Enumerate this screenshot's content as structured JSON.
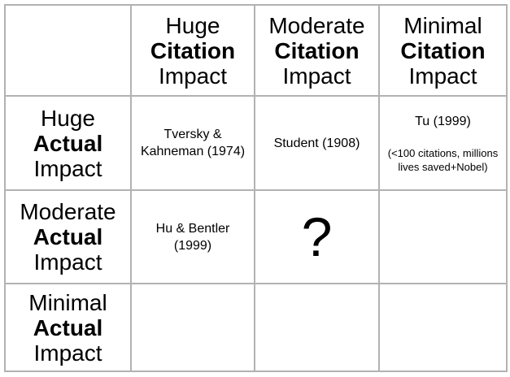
{
  "colors": {
    "background": "#ffffff",
    "grid_line": "#b2b2b2",
    "text": "#000000"
  },
  "matrix": {
    "col_headers": [
      {
        "line1": "Huge",
        "line2": "Citation",
        "line3": "Impact"
      },
      {
        "line1": "Moderate",
        "line2": "Citation",
        "line3": "Impact"
      },
      {
        "line1": "Minimal",
        "line2": "Citation",
        "line3": "Impact"
      }
    ],
    "row_headers": [
      {
        "line1": "Huge",
        "line2": "Actual",
        "line3": "Impact"
      },
      {
        "line1": "Moderate",
        "line2": "Actual",
        "line3": "Impact"
      },
      {
        "line1": "Minimal",
        "line2": "Actual",
        "line3": "Impact"
      }
    ],
    "cells": {
      "tversky": {
        "line1": "Tversky &",
        "line2": "Kahneman (1974)"
      },
      "student": {
        "line1": "Student (1908)"
      },
      "tu": {
        "title": "Tu (1999)",
        "note_line1": "(<100 citations, millions",
        "note_line2": "lives saved+Nobel)"
      },
      "hu_bentler": {
        "line1": "Hu & Bentler",
        "line2": "(1999)"
      },
      "question": {
        "mark": "?"
      }
    }
  },
  "chart_data": {
    "type": "table",
    "columns": [
      "",
      "Huge Citation Impact",
      "Moderate Citation Impact",
      "Minimal Citation Impact"
    ],
    "rows": [
      [
        "Huge Actual Impact",
        "Tversky & Kahneman (1974)",
        "Student (1908)",
        "Tu (1999) (<100 citations, millions lives saved+Nobel)"
      ],
      [
        "Moderate Actual Impact",
        "Hu & Bentler (1999)",
        "?",
        ""
      ],
      [
        "Minimal Actual Impact",
        "",
        "",
        ""
      ]
    ]
  }
}
